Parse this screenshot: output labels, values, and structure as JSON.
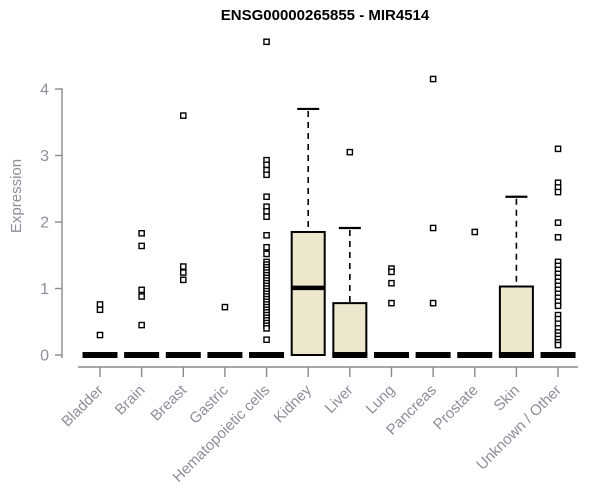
{
  "chart_data": {
    "type": "boxplot",
    "title": "ENSG00000265855 - MIR4514",
    "ylabel": "Expression",
    "xlabel": "",
    "grid": false,
    "legend": false,
    "y_axis": {
      "ticks": [
        0,
        1,
        2,
        3,
        4
      ],
      "range": [
        0,
        4.85
      ]
    },
    "categories": [
      "Bladder",
      "Brain",
      "Breast",
      "Gastric",
      "Hematopoietic cells",
      "Kidney",
      "Liver",
      "Lung",
      "Pancreas",
      "Prostate",
      "Skin",
      "Unknown / Other"
    ],
    "boxes": [
      {
        "category": "Bladder",
        "q1": 0,
        "median": 0,
        "q3": 0,
        "whisker_low": 0,
        "whisker_high": 0,
        "outliers": [
          0.76,
          0.68,
          0.3
        ]
      },
      {
        "category": "Brain",
        "q1": 0,
        "median": 0,
        "q3": 0,
        "whisker_low": 0,
        "whisker_high": 0,
        "outliers": [
          1.83,
          1.64,
          0.98,
          0.88,
          0.45
        ]
      },
      {
        "category": "Breast",
        "q1": 0,
        "median": 0,
        "q3": 0,
        "whisker_low": 0,
        "whisker_high": 0,
        "outliers": [
          3.6,
          1.33,
          1.24,
          1.13
        ]
      },
      {
        "category": "Gastric",
        "q1": 0,
        "median": 0,
        "q3": 0,
        "whisker_low": 0,
        "whisker_high": 0,
        "outliers": [
          0.72
        ]
      },
      {
        "category": "Hematopoietic cells",
        "q1": 0,
        "median": 0,
        "q3": 0,
        "whisker_low": 0,
        "whisker_high": 0,
        "outliers": [
          4.71,
          2.93,
          2.86,
          2.78,
          2.71,
          2.38,
          2.23,
          2.16,
          2.08,
          1.8,
          1.62,
          1.52,
          1.4,
          1.36,
          1.32,
          1.28,
          1.24,
          1.2,
          1.16,
          1.12,
          1.08,
          1.04,
          1.0,
          0.96,
          0.92,
          0.88,
          0.84,
          0.8,
          0.76,
          0.72,
          0.68,
          0.64,
          0.6,
          0.56,
          0.52,
          0.48,
          0.44,
          0.4,
          0.23
        ]
      },
      {
        "category": "Kidney",
        "q1": 0,
        "median": 1.01,
        "q3": 1.85,
        "whisker_low": 0,
        "whisker_high": 3.7,
        "outliers": []
      },
      {
        "category": "Liver",
        "q1": 0,
        "median": 0,
        "q3": 0.78,
        "whisker_low": 0,
        "whisker_high": 1.91,
        "outliers": [
          3.05
        ]
      },
      {
        "category": "Lung",
        "q1": 0,
        "median": 0,
        "q3": 0,
        "whisker_low": 0,
        "whisker_high": 0,
        "outliers": [
          1.3,
          1.25,
          1.08,
          0.78
        ]
      },
      {
        "category": "Pancreas",
        "q1": 0,
        "median": 0,
        "q3": 0,
        "whisker_low": 0,
        "whisker_high": 0,
        "outliers": [
          4.15,
          1.91,
          0.78
        ]
      },
      {
        "category": "Prostate",
        "q1": 0,
        "median": 0,
        "q3": 0,
        "whisker_low": 0,
        "whisker_high": 0,
        "outliers": [
          1.85
        ]
      },
      {
        "category": "Skin",
        "q1": 0,
        "median": 0,
        "q3": 1.03,
        "whisker_low": 0,
        "whisker_high": 2.38,
        "outliers": []
      },
      {
        "category": "Unknown / Other",
        "q1": 0,
        "median": 0,
        "q3": 0,
        "whisker_low": 0,
        "whisker_high": 0,
        "outliers": [
          3.1,
          2.59,
          2.52,
          2.45,
          1.99,
          1.77,
          1.4,
          1.34,
          1.28,
          1.22,
          1.16,
          1.1,
          1.04,
          0.98,
          0.92,
          0.86,
          0.8,
          0.74,
          0.6,
          0.54,
          0.47,
          0.4,
          0.34,
          0.29,
          0.24,
          0.19,
          0.15
        ]
      }
    ],
    "marker": "open-square",
    "colors": {
      "box_fill": "#ece7cd",
      "box_stroke": "#000000",
      "median": "#000000",
      "axis": "#8a8a8a",
      "tick_label": "#8d8e99",
      "title": "#000000"
    }
  }
}
